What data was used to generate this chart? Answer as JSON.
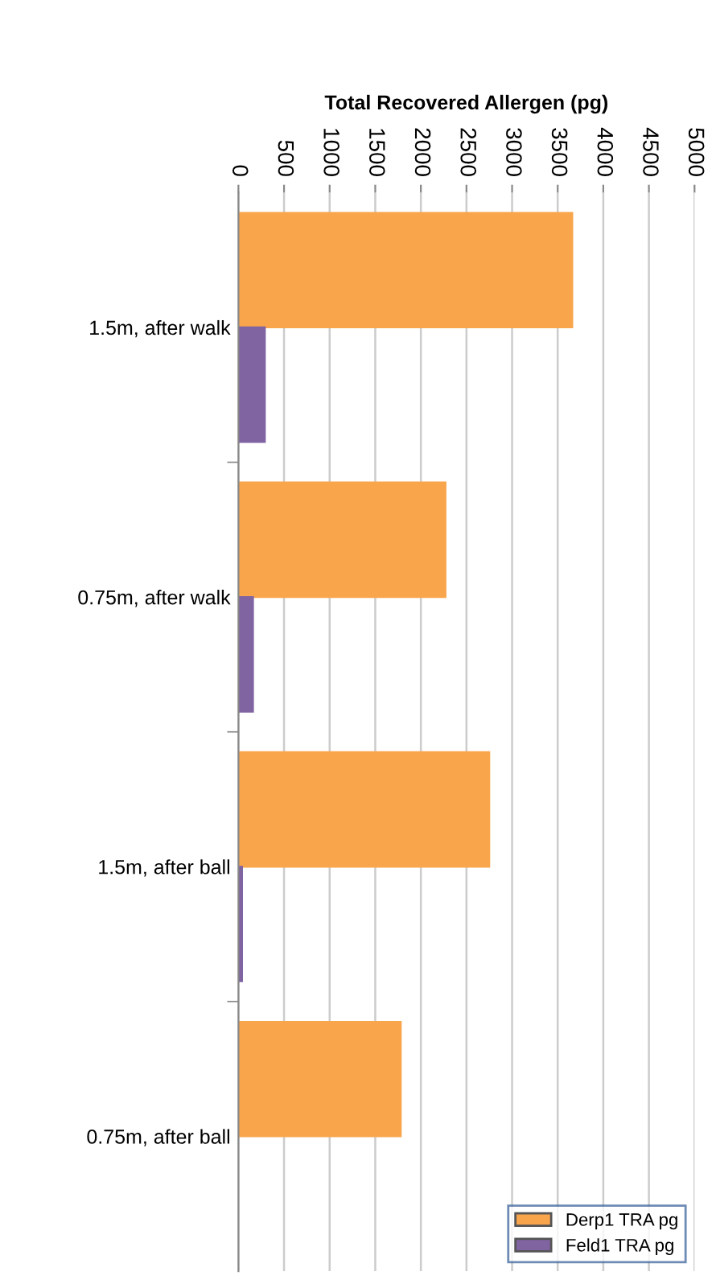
{
  "chart_data": {
    "type": "bar",
    "orientation": "horizontal",
    "xlabel": "Total Recovered Allergen (pg)",
    "categories": [
      "1.5m, after walk",
      "0.75m, after walk",
      "1.5m, after ball",
      "0.75m, after ball"
    ],
    "series": [
      {
        "name": "Derp1 TRA pg",
        "color": "#f9a54c",
        "values": [
          3660,
          2270,
          2750,
          1780
        ]
      },
      {
        "name": "Feld1 TRA pg",
        "color": "#8064a2",
        "values": [
          290,
          160,
          40,
          null
        ]
      }
    ],
    "xlim": [
      0,
      5000
    ],
    "xticks": [
      0,
      500,
      1000,
      1500,
      2000,
      2500,
      3000,
      3500,
      4000,
      4500,
      5000
    ],
    "grid": "x",
    "legend": "bottom right"
  }
}
